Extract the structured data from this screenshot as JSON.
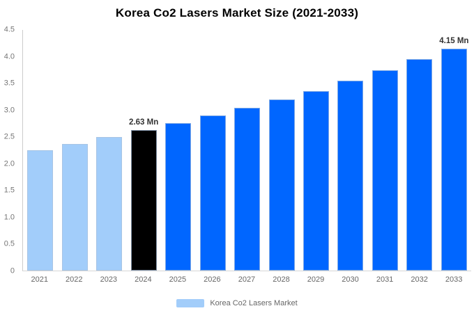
{
  "chart_data": {
    "type": "bar",
    "title": "Korea Co2 Lasers Market Size (2021-2033)",
    "categories": [
      "2021",
      "2022",
      "2023",
      "2024",
      "2025",
      "2026",
      "2027",
      "2028",
      "2029",
      "2030",
      "2031",
      "2032",
      "2033"
    ],
    "values": [
      2.25,
      2.37,
      2.5,
      2.63,
      2.76,
      2.9,
      3.05,
      3.2,
      3.36,
      3.55,
      3.74,
      3.95,
      4.15
    ],
    "bar_labels": [
      "",
      "",
      "",
      "2.63 Mn",
      "",
      "",
      "",
      "",
      "",
      "",
      "",
      "",
      "4.15 Mn"
    ],
    "bar_colors": [
      "#a2cdfa",
      "#a2cdfa",
      "#a2cdfa",
      "#000000",
      "#0066ff",
      "#0066ff",
      "#0066ff",
      "#0066ff",
      "#0066ff",
      "#0066ff",
      "#0066ff",
      "#0066ff",
      "#0066ff"
    ],
    "xlabel": "",
    "ylabel": "",
    "ylim": [
      0,
      4.5
    ],
    "yticks": [
      "0",
      "0.5",
      "1.0",
      "1.5",
      "2.0",
      "2.5",
      "3.0",
      "3.5",
      "4.0",
      "4.5"
    ],
    "grid": false,
    "legend": {
      "position": "bottom",
      "items": [
        {
          "label": "Korea Co2 Lasers Market",
          "color": "#a2cdfa"
        }
      ]
    },
    "colors": {
      "past_years_bar": "#a2cdfa",
      "base_year_bar": "#000000",
      "forecast_bar": "#0066ff",
      "axis_line": "#cccccc",
      "tick_text": "#757575",
      "annotation_text": "#333333",
      "title_text": "#000000"
    }
  }
}
